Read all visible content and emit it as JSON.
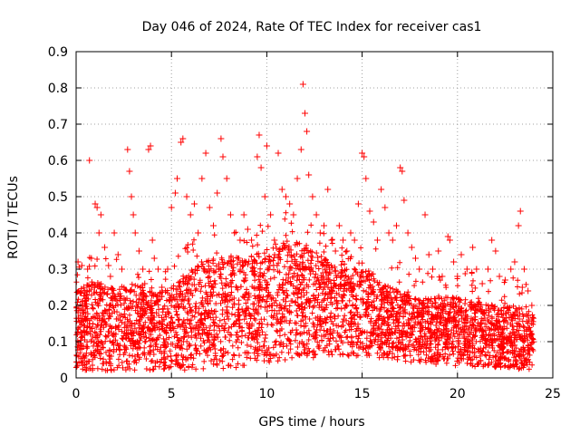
{
  "chart_data": {
    "type": "scatter",
    "title": "Day 046 of 2024, Rate Of TEC Index for receiver cas1",
    "xlabel": "GPS time / hours",
    "ylabel": "ROTI / TECUs",
    "xlim": [
      0,
      25
    ],
    "ylim": [
      0,
      0.9
    ],
    "x_ticks": [
      0,
      5,
      10,
      15,
      20,
      25
    ],
    "x_tick_labels": [
      "0",
      "5",
      "10",
      "15",
      "20",
      "25"
    ],
    "y_ticks": [
      0,
      0.1,
      0.2,
      0.3,
      0.4,
      0.5,
      0.6,
      0.7,
      0.8,
      0.9
    ],
    "y_tick_labels": [
      "0",
      "0.1",
      "0.2",
      "0.3",
      "0.4",
      "0.5",
      "0.6",
      "0.7",
      "0.8",
      "0.9"
    ],
    "grid": true,
    "marker": "+",
    "marker_color": "#ff0000",
    "series": [
      {
        "name": "ROTI",
        "points": [
          [
            0.1,
            0.32
          ],
          [
            0.3,
            0.31
          ],
          [
            0.4,
            0.25
          ],
          [
            0.6,
            0.3
          ],
          [
            0.7,
            0.6
          ],
          [
            0.8,
            0.33
          ],
          [
            1.0,
            0.48
          ],
          [
            1.1,
            0.47
          ],
          [
            1.2,
            0.4
          ],
          [
            1.3,
            0.45
          ],
          [
            1.5,
            0.36
          ],
          [
            1.7,
            0.31
          ],
          [
            1.8,
            0.28
          ],
          [
            2.0,
            0.4
          ],
          [
            2.2,
            0.34
          ],
          [
            2.4,
            0.3
          ],
          [
            2.7,
            0.63
          ],
          [
            2.8,
            0.57
          ],
          [
            2.9,
            0.5
          ],
          [
            3.0,
            0.45
          ],
          [
            3.1,
            0.4
          ],
          [
            3.3,
            0.35
          ],
          [
            3.5,
            0.3
          ],
          [
            3.6,
            0.26
          ],
          [
            3.8,
            0.63
          ],
          [
            3.9,
            0.64
          ],
          [
            4.0,
            0.38
          ],
          [
            4.1,
            0.33
          ],
          [
            4.3,
            0.3
          ],
          [
            4.5,
            0.25
          ],
          [
            4.8,
            0.3
          ],
          [
            5.0,
            0.47
          ],
          [
            5.2,
            0.51
          ],
          [
            5.3,
            0.55
          ],
          [
            5.5,
            0.65
          ],
          [
            5.6,
            0.66
          ],
          [
            5.8,
            0.5
          ],
          [
            6.0,
            0.45
          ],
          [
            6.2,
            0.48
          ],
          [
            6.4,
            0.4
          ],
          [
            6.6,
            0.55
          ],
          [
            6.8,
            0.62
          ],
          [
            7.0,
            0.47
          ],
          [
            7.2,
            0.42
          ],
          [
            7.4,
            0.51
          ],
          [
            7.6,
            0.66
          ],
          [
            7.7,
            0.61
          ],
          [
            7.9,
            0.55
          ],
          [
            8.1,
            0.45
          ],
          [
            8.3,
            0.4
          ],
          [
            8.6,
            0.38
          ],
          [
            8.8,
            0.45
          ],
          [
            9.0,
            0.41
          ],
          [
            9.2,
            0.38
          ],
          [
            9.5,
            0.61
          ],
          [
            9.6,
            0.67
          ],
          [
            9.7,
            0.58
          ],
          [
            9.9,
            0.5
          ],
          [
            10.0,
            0.64
          ],
          [
            10.2,
            0.45
          ],
          [
            10.4,
            0.38
          ],
          [
            10.6,
            0.62
          ],
          [
            10.8,
            0.52
          ],
          [
            11.0,
            0.5
          ],
          [
            11.2,
            0.48
          ],
          [
            11.4,
            0.45
          ],
          [
            11.6,
            0.55
          ],
          [
            11.8,
            0.63
          ],
          [
            11.9,
            0.81
          ],
          [
            12.0,
            0.73
          ],
          [
            12.1,
            0.68
          ],
          [
            12.2,
            0.56
          ],
          [
            12.4,
            0.5
          ],
          [
            12.6,
            0.45
          ],
          [
            12.8,
            0.4
          ],
          [
            13.0,
            0.42
          ],
          [
            13.2,
            0.52
          ],
          [
            13.4,
            0.38
          ],
          [
            13.6,
            0.35
          ],
          [
            13.8,
            0.42
          ],
          [
            14.0,
            0.38
          ],
          [
            14.2,
            0.35
          ],
          [
            14.4,
            0.4
          ],
          [
            14.6,
            0.38
          ],
          [
            14.8,
            0.48
          ],
          [
            15.0,
            0.62
          ],
          [
            15.1,
            0.61
          ],
          [
            15.2,
            0.55
          ],
          [
            15.4,
            0.46
          ],
          [
            15.6,
            0.43
          ],
          [
            15.8,
            0.38
          ],
          [
            16.0,
            0.52
          ],
          [
            16.2,
            0.47
          ],
          [
            16.4,
            0.4
          ],
          [
            16.6,
            0.38
          ],
          [
            16.8,
            0.42
          ],
          [
            17.0,
            0.58
          ],
          [
            17.1,
            0.57
          ],
          [
            17.2,
            0.49
          ],
          [
            17.4,
            0.4
          ],
          [
            17.6,
            0.36
          ],
          [
            17.8,
            0.33
          ],
          [
            18.0,
            0.3
          ],
          [
            18.3,
            0.45
          ],
          [
            18.5,
            0.34
          ],
          [
            18.7,
            0.3
          ],
          [
            19.0,
            0.35
          ],
          [
            19.2,
            0.28
          ],
          [
            19.5,
            0.39
          ],
          [
            19.6,
            0.38
          ],
          [
            19.8,
            0.32
          ],
          [
            20.0,
            0.28
          ],
          [
            20.2,
            0.34
          ],
          [
            20.5,
            0.3
          ],
          [
            20.8,
            0.36
          ],
          [
            21.0,
            0.3
          ],
          [
            21.3,
            0.26
          ],
          [
            21.6,
            0.3
          ],
          [
            21.8,
            0.38
          ],
          [
            22.0,
            0.35
          ],
          [
            22.2,
            0.28
          ],
          [
            22.5,
            0.27
          ],
          [
            22.8,
            0.3
          ],
          [
            23.0,
            0.32
          ],
          [
            23.2,
            0.42
          ],
          [
            23.3,
            0.46
          ],
          [
            23.4,
            0.25
          ],
          [
            23.5,
            0.3
          ],
          [
            23.7,
            0.24
          ],
          [
            23.9,
            0.2
          ]
        ],
        "dense_band": {
          "note": "tens of thousands of '+' markers densely filling the region below the envelope",
          "x_range": [
            0,
            24
          ],
          "envelope": [
            [
              0,
              0.24
            ],
            [
              1,
              0.27
            ],
            [
              2,
              0.25
            ],
            [
              3,
              0.26
            ],
            [
              4,
              0.24
            ],
            [
              5,
              0.25
            ],
            [
              6,
              0.3
            ],
            [
              7,
              0.33
            ],
            [
              8,
              0.34
            ],
            [
              9,
              0.33
            ],
            [
              10,
              0.36
            ],
            [
              11,
              0.38
            ],
            [
              12,
              0.37
            ],
            [
              13,
              0.33
            ],
            [
              14,
              0.3
            ],
            [
              15,
              0.32
            ],
            [
              16,
              0.26
            ],
            [
              17,
              0.24
            ],
            [
              18,
              0.22
            ],
            [
              19,
              0.23
            ],
            [
              20,
              0.22
            ],
            [
              21,
              0.21
            ],
            [
              22,
              0.2
            ],
            [
              23,
              0.2
            ],
            [
              24,
              0.18
            ]
          ],
          "floor": [
            [
              0,
              0.02
            ],
            [
              3,
              0.02
            ],
            [
              6,
              0.02
            ],
            [
              9,
              0.03
            ],
            [
              12,
              0.05
            ],
            [
              15,
              0.06
            ],
            [
              18,
              0.04
            ],
            [
              21,
              0.03
            ],
            [
              24,
              0.02
            ]
          ]
        }
      }
    ]
  }
}
